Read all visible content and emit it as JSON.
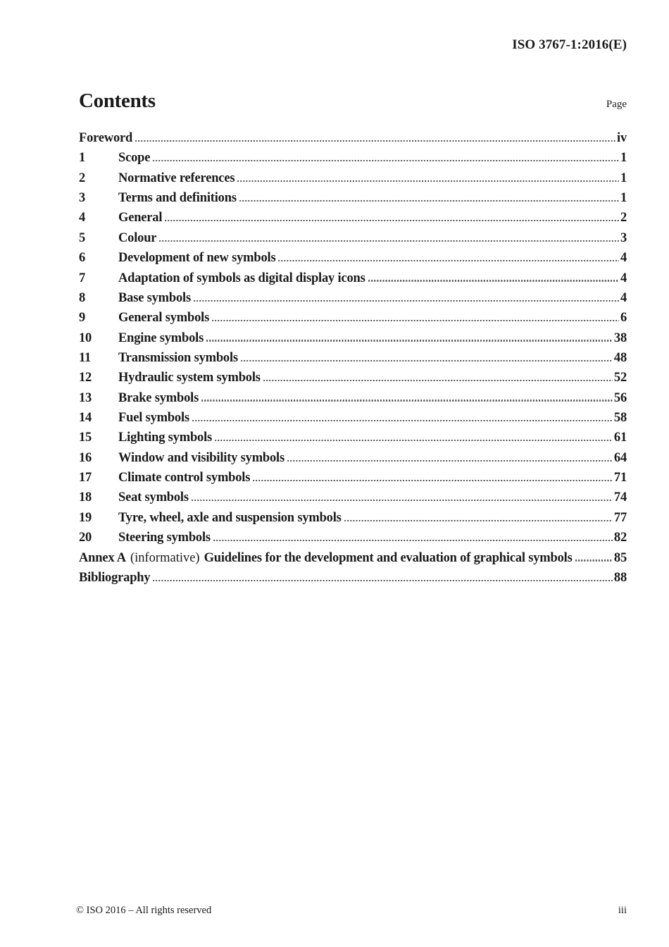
{
  "page": {
    "doc_ref": "ISO 3767-1:2016(E)",
    "footer_left": "© ISO 2016 – All rights reserved",
    "footer_right": "iii"
  },
  "contents": {
    "title": "Contents",
    "page_label": "Page",
    "entries": [
      {
        "num": "",
        "title": "Foreword",
        "informative": "",
        "title2": "",
        "page": "iv"
      },
      {
        "num": "1",
        "title": "Scope",
        "page": "1"
      },
      {
        "num": "2",
        "title": "Normative references",
        "page": "1"
      },
      {
        "num": "3",
        "title": "Terms and definitions",
        "page": "1"
      },
      {
        "num": "4",
        "title": "General",
        "page": "2"
      },
      {
        "num": "5",
        "title": "Colour",
        "page": "3"
      },
      {
        "num": "6",
        "title": "Development of new symbols",
        "page": "4"
      },
      {
        "num": "7",
        "title": "Adaptation of symbols as digital display icons",
        "page": "4"
      },
      {
        "num": "8",
        "title": "Base symbols",
        "page": "4"
      },
      {
        "num": "9",
        "title": "General symbols",
        "page": "6"
      },
      {
        "num": "10",
        "title": "Engine symbols",
        "page": "38"
      },
      {
        "num": "11",
        "title": "Transmission symbols",
        "page": "48"
      },
      {
        "num": "12",
        "title": "Hydraulic system symbols",
        "page": "52"
      },
      {
        "num": "13",
        "title": "Brake symbols",
        "page": "56"
      },
      {
        "num": "14",
        "title": "Fuel symbols",
        "page": "58"
      },
      {
        "num": "15",
        "title": "Lighting symbols",
        "page": "61"
      },
      {
        "num": "16",
        "title": "Window and visibility symbols",
        "page": "64"
      },
      {
        "num": "17",
        "title": "Climate control symbols",
        "page": "71"
      },
      {
        "num": "18",
        "title": "Seat symbols",
        "page": "74"
      },
      {
        "num": "19",
        "title": "Tyre, wheel, axle and suspension symbols",
        "page": "77"
      },
      {
        "num": "20",
        "title": "Steering symbols",
        "page": "82"
      },
      {
        "num": "",
        "title": "Annex A",
        "informative": "(informative)",
        "title2": "Guidelines for the development and evaluation of graphical symbols",
        "page": "85"
      },
      {
        "num": "",
        "title": "Bibliography",
        "informative": "",
        "title2": "",
        "page": "88"
      }
    ]
  }
}
